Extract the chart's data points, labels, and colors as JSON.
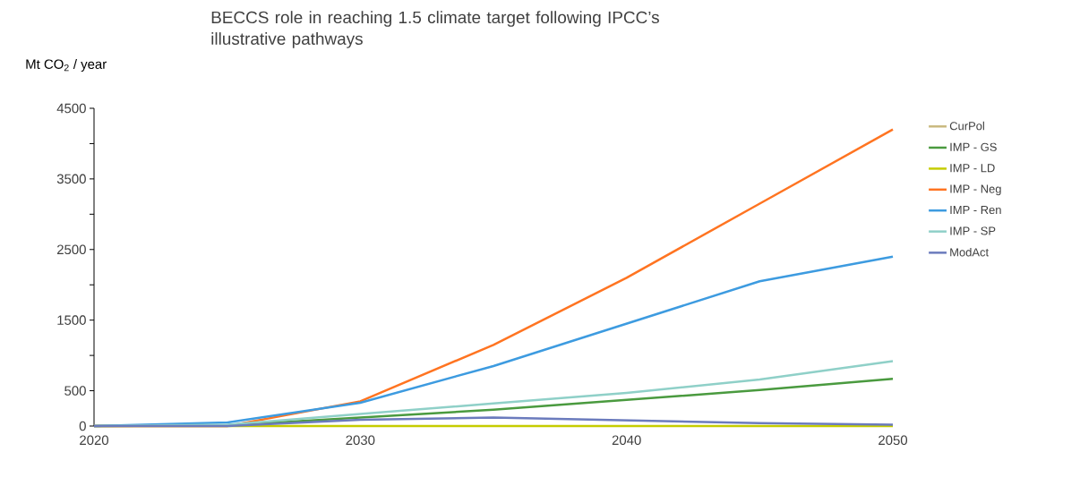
{
  "chart_data": {
    "type": "line",
    "title": "BECCS role in reaching 1.5 climate target following IPCC’s illustrative pathways",
    "ylabel": "Mt CO$_{2}$ / year",
    "x": [
      2020,
      2025,
      2030,
      2035,
      2040,
      2045,
      2050
    ],
    "series": [
      {
        "name": "CurPol",
        "color": "#c9b97f",
        "values": [
          null,
          null,
          null,
          null,
          null,
          null,
          null
        ]
      },
      {
        "name": "IMP - GS",
        "color": "#4a9a3f",
        "values": [
          0,
          10,
          120,
          230,
          370,
          510,
          670
        ]
      },
      {
        "name": "IMP - LD",
        "color": "#c5cc00",
        "values": [
          0,
          0,
          0,
          0,
          0,
          0,
          0
        ]
      },
      {
        "name": "IMP - Neg",
        "color": "#ff7421",
        "values": [
          0,
          0,
          350,
          1150,
          2100,
          3150,
          4200
        ]
      },
      {
        "name": "IMP - Ren",
        "color": "#3d9be0",
        "values": [
          0,
          50,
          330,
          850,
          1450,
          2050,
          2400
        ]
      },
      {
        "name": "IMP - SP",
        "color": "#8fd0c8",
        "values": [
          0,
          20,
          170,
          320,
          470,
          660,
          920
        ]
      },
      {
        "name": "ModAct",
        "color": "#6b7bbd",
        "values": [
          0,
          0,
          90,
          120,
          80,
          40,
          20
        ]
      }
    ],
    "xlim": [
      2020,
      2050
    ],
    "xticks": [
      2020,
      2030,
      2040,
      2050
    ],
    "ylim": [
      0,
      4500
    ],
    "yticks": [
      0,
      500,
      {
        "value": 1000,
        "label": null
      },
      1500,
      {
        "value": 2000,
        "label": null
      },
      2500,
      {
        "value": 3000,
        "label": null
      },
      3500,
      {
        "value": 4000,
        "label": null
      },
      4500
    ],
    "legend": "right",
    "grid": false,
    "marker": "none",
    "line_style": "solid"
  }
}
